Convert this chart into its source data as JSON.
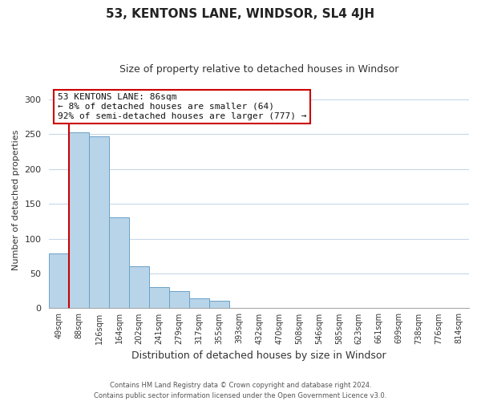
{
  "title": "53, KENTONS LANE, WINDSOR, SL4 4JH",
  "subtitle": "Size of property relative to detached houses in Windsor",
  "xlabel": "Distribution of detached houses by size in Windsor",
  "ylabel": "Number of detached properties",
  "bin_labels": [
    "49sqm",
    "88sqm",
    "126sqm",
    "164sqm",
    "202sqm",
    "241sqm",
    "279sqm",
    "317sqm",
    "355sqm",
    "393sqm",
    "432sqm",
    "470sqm",
    "508sqm",
    "546sqm",
    "585sqm",
    "623sqm",
    "661sqm",
    "699sqm",
    "738sqm",
    "776sqm",
    "814sqm"
  ],
  "bar_heights": [
    79,
    252,
    247,
    131,
    60,
    30,
    25,
    14,
    11,
    0,
    0,
    0,
    0,
    0,
    0,
    0,
    1,
    0,
    0,
    0,
    1
  ],
  "bar_color": "#b8d4e8",
  "bar_edge_color": "#6aa0c8",
  "highlight_line_color": "#cc0000",
  "ylim": [
    0,
    310
  ],
  "yticks": [
    0,
    50,
    100,
    150,
    200,
    250,
    300
  ],
  "annotation_title": "53 KENTONS LANE: 86sqm",
  "annotation_line1": "← 8% of detached houses are smaller (64)",
  "annotation_line2": "92% of semi-detached houses are larger (777) →",
  "annotation_box_color": "#ffffff",
  "annotation_box_edge": "#cc0000",
  "footer_line1": "Contains HM Land Registry data © Crown copyright and database right 2024.",
  "footer_line2": "Contains public sector information licensed under the Open Government Licence v3.0.",
  "background_color": "#ffffff",
  "grid_color": "#c8d8e8",
  "title_fontsize": 11,
  "subtitle_fontsize": 9
}
